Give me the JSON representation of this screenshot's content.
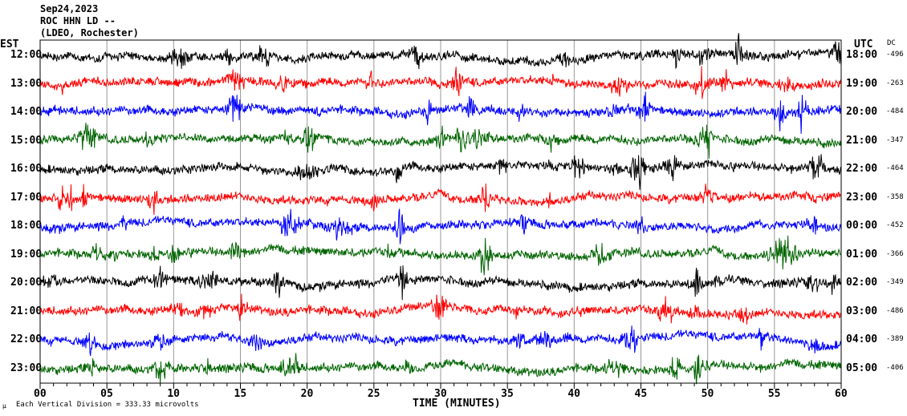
{
  "header": {
    "date": "Sep24,2023",
    "station": "ROC HHN LD --",
    "network": "(LDEO, Rochester)"
  },
  "chart_data": {
    "type": "line",
    "title": "Sep24,2023 ROC HHN LD -- (LDEO, Rochester)",
    "xlabel": "TIME (MINUTES)",
    "left_axis_label": "EST",
    "right_axis_label": "UTC",
    "dc_label": "DC",
    "xlim": [
      0,
      60
    ],
    "x_ticks": [
      "00",
      "05",
      "10",
      "15",
      "20",
      "25",
      "30",
      "35",
      "40",
      "45",
      "50",
      "55",
      "60"
    ],
    "series_colors": [
      "#000000",
      "#ff0000",
      "#0000ff",
      "#006400"
    ],
    "rows": [
      {
        "est": "12:00",
        "utc": "18:00",
        "dc": "-496"
      },
      {
        "est": "13:00",
        "utc": "19:00",
        "dc": "-263"
      },
      {
        "est": "14:00",
        "utc": "20:00",
        "dc": "-484"
      },
      {
        "est": "15:00",
        "utc": "21:00",
        "dc": "-347"
      },
      {
        "est": "16:00",
        "utc": "22:00",
        "dc": "-464"
      },
      {
        "est": "17:00",
        "utc": "23:00",
        "dc": "-358"
      },
      {
        "est": "18:00",
        "utc": "00:00",
        "dc": "-452"
      },
      {
        "est": "19:00",
        "utc": "01:00",
        "dc": "-366"
      },
      {
        "est": "20:00",
        "utc": "02:00",
        "dc": "-349"
      },
      {
        "est": "21:00",
        "utc": "03:00",
        "dc": "-486"
      },
      {
        "est": "22:00",
        "utc": "04:00",
        "dc": "-389"
      },
      {
        "est": "23:00",
        "utc": "05:00",
        "dc": "-406"
      }
    ],
    "scale_note": "Each Vertical Division =  333.33 microvolts"
  }
}
